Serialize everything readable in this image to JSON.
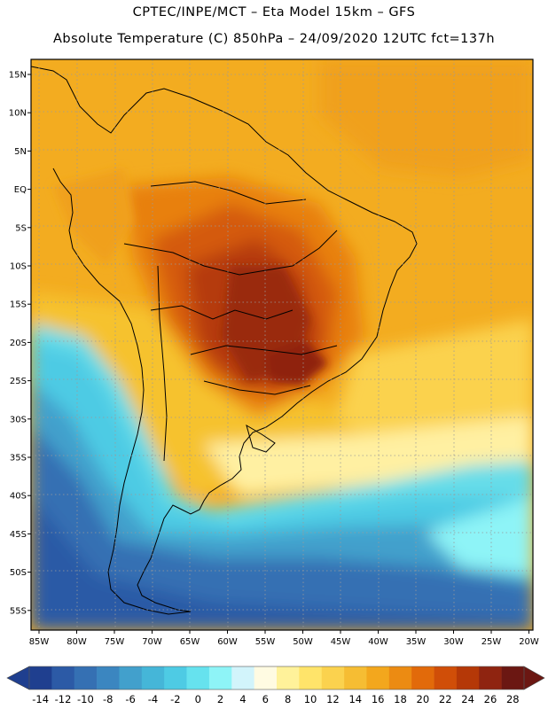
{
  "header": {
    "line1": "CPTEC/INPE/MCT –  Eta Model 15km – GFS",
    "line2": "Absolute Temperature (C) 850hPa – 24/09/2020 12UTC fct=137h"
  },
  "map": {
    "lat_labels": [
      "15N",
      "10N",
      "5N",
      "EQ",
      "5S",
      "10S",
      "15S",
      "20S",
      "25S",
      "30S",
      "35S",
      "40S",
      "45S",
      "50S",
      "55S"
    ],
    "lon_labels": [
      "85W",
      "80W",
      "75W",
      "70W",
      "65W",
      "60W",
      "55W",
      "50W",
      "45W",
      "40W",
      "35W",
      "30W",
      "25W",
      "20W"
    ],
    "lat_range": [
      18,
      -58
    ],
    "lon_range": [
      -86,
      -19
    ],
    "grid": true
  },
  "colorbar": {
    "labels": [
      "-14",
      "-12",
      "-10",
      "-8",
      "-6",
      "-4",
      "-2",
      "0",
      "2",
      "4",
      "6",
      "8",
      "10",
      "12",
      "14",
      "16",
      "18",
      "20",
      "22",
      "24",
      "26",
      "28"
    ],
    "colors": [
      "#1f3f8f",
      "#2c5aa6",
      "#3570b3",
      "#3b86c0",
      "#42a0cc",
      "#45b6d8",
      "#4ecbe4",
      "#66e2ee",
      "#8ef4f7",
      "#d2f4fb",
      "#fffbe2",
      "#fff29a",
      "#ffe46a",
      "#fbd24e",
      "#f6bd33",
      "#f3a71d",
      "#ec8b12",
      "#e26a0a",
      "#d04e08",
      "#b53807",
      "#8f2410",
      "#6b1712"
    ],
    "low_arrow_color": "#1f3f8f",
    "high_arrow_color": "#6b1712"
  }
}
